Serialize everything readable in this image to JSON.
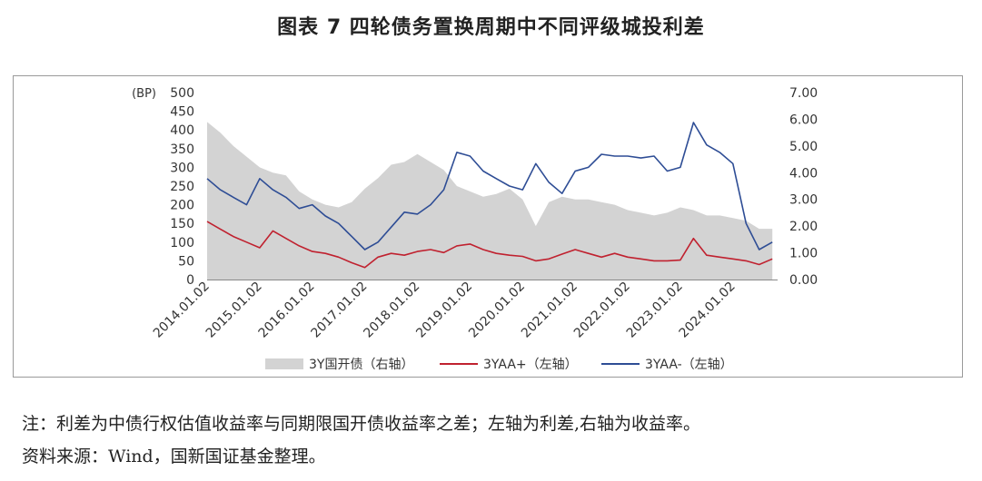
{
  "title": "图表 7 四轮债务置换周期中不同评级城投利差",
  "notes": {
    "line1": "注：利差为中债行权估值收益率与同期限国开债收益率之差；左轴为利差,右轴为收益率。",
    "line2": "资料来源：Wind，国新国证基金整理。"
  },
  "colors": {
    "gray_area": "#d3d3d3",
    "red_line": "#c0212f",
    "blue_line": "#2e4d95",
    "frame": "#9a9a9a"
  },
  "chart_data": {
    "type": "line",
    "y_left": {
      "unit_label": "(BP)",
      "range": [
        0,
        500
      ],
      "ticks": [
        "0",
        "50",
        "100",
        "150",
        "200",
        "250",
        "300",
        "350",
        "400",
        "450",
        "500"
      ]
    },
    "y_right": {
      "range": [
        0,
        7
      ],
      "ticks": [
        "0.00",
        "1.00",
        "2.00",
        "3.00",
        "4.00",
        "5.00",
        "6.00",
        "7.00"
      ]
    },
    "x_ticks": [
      "2014.01.02",
      "2015.01.02",
      "2016.01.02",
      "2017.01.02",
      "2018.01.02",
      "2019.01.02",
      "2020.01.02",
      "2021.01.02",
      "2022.01.02",
      "2023.01.02",
      "2024.01.02"
    ],
    "x": [
      2014.0,
      2014.25,
      2014.5,
      2014.75,
      2015.0,
      2015.25,
      2015.5,
      2015.75,
      2016.0,
      2016.25,
      2016.5,
      2016.75,
      2017.0,
      2017.25,
      2017.5,
      2017.75,
      2018.0,
      2018.25,
      2018.5,
      2018.75,
      2019.0,
      2019.25,
      2019.5,
      2019.75,
      2020.0,
      2020.25,
      2020.5,
      2020.75,
      2021.0,
      2021.25,
      2021.5,
      2021.75,
      2022.0,
      2022.25,
      2022.5,
      2022.75,
      2023.0,
      2023.25,
      2023.5,
      2023.75,
      2024.0,
      2024.25,
      2024.5,
      2024.75
    ],
    "series": [
      {
        "name": "3Y国开债（右轴）",
        "kind": "area",
        "axis": "right",
        "values": [
          5.9,
          5.5,
          5.0,
          4.6,
          4.2,
          4.0,
          3.9,
          3.3,
          3.0,
          2.8,
          2.7,
          2.9,
          3.4,
          3.8,
          4.3,
          4.4,
          4.7,
          4.4,
          4.1,
          3.5,
          3.3,
          3.1,
          3.2,
          3.4,
          3.0,
          2.0,
          2.9,
          3.1,
          3.0,
          3.0,
          2.9,
          2.8,
          2.6,
          2.5,
          2.4,
          2.5,
          2.7,
          2.6,
          2.4,
          2.4,
          2.3,
          2.2,
          1.9,
          1.9
        ]
      },
      {
        "name": "3YAA+（左轴）",
        "kind": "line",
        "axis": "left",
        "values": [
          155,
          135,
          115,
          100,
          85,
          130,
          110,
          90,
          75,
          70,
          60,
          45,
          32,
          60,
          70,
          65,
          75,
          80,
          72,
          90,
          95,
          80,
          70,
          65,
          62,
          50,
          55,
          68,
          80,
          70,
          60,
          70,
          60,
          55,
          50,
          50,
          52,
          110,
          65,
          60,
          55,
          50,
          40,
          55
        ]
      },
      {
        "name": "3YAA-（左轴）",
        "kind": "line",
        "axis": "left",
        "values": [
          270,
          240,
          220,
          200,
          270,
          240,
          220,
          190,
          200,
          170,
          150,
          115,
          80,
          100,
          140,
          180,
          175,
          200,
          240,
          340,
          330,
          290,
          270,
          250,
          240,
          310,
          260,
          230,
          290,
          300,
          335,
          330,
          330,
          325,
          330,
          290,
          300,
          420,
          360,
          340,
          310,
          150,
          80,
          100
        ]
      }
    ]
  }
}
